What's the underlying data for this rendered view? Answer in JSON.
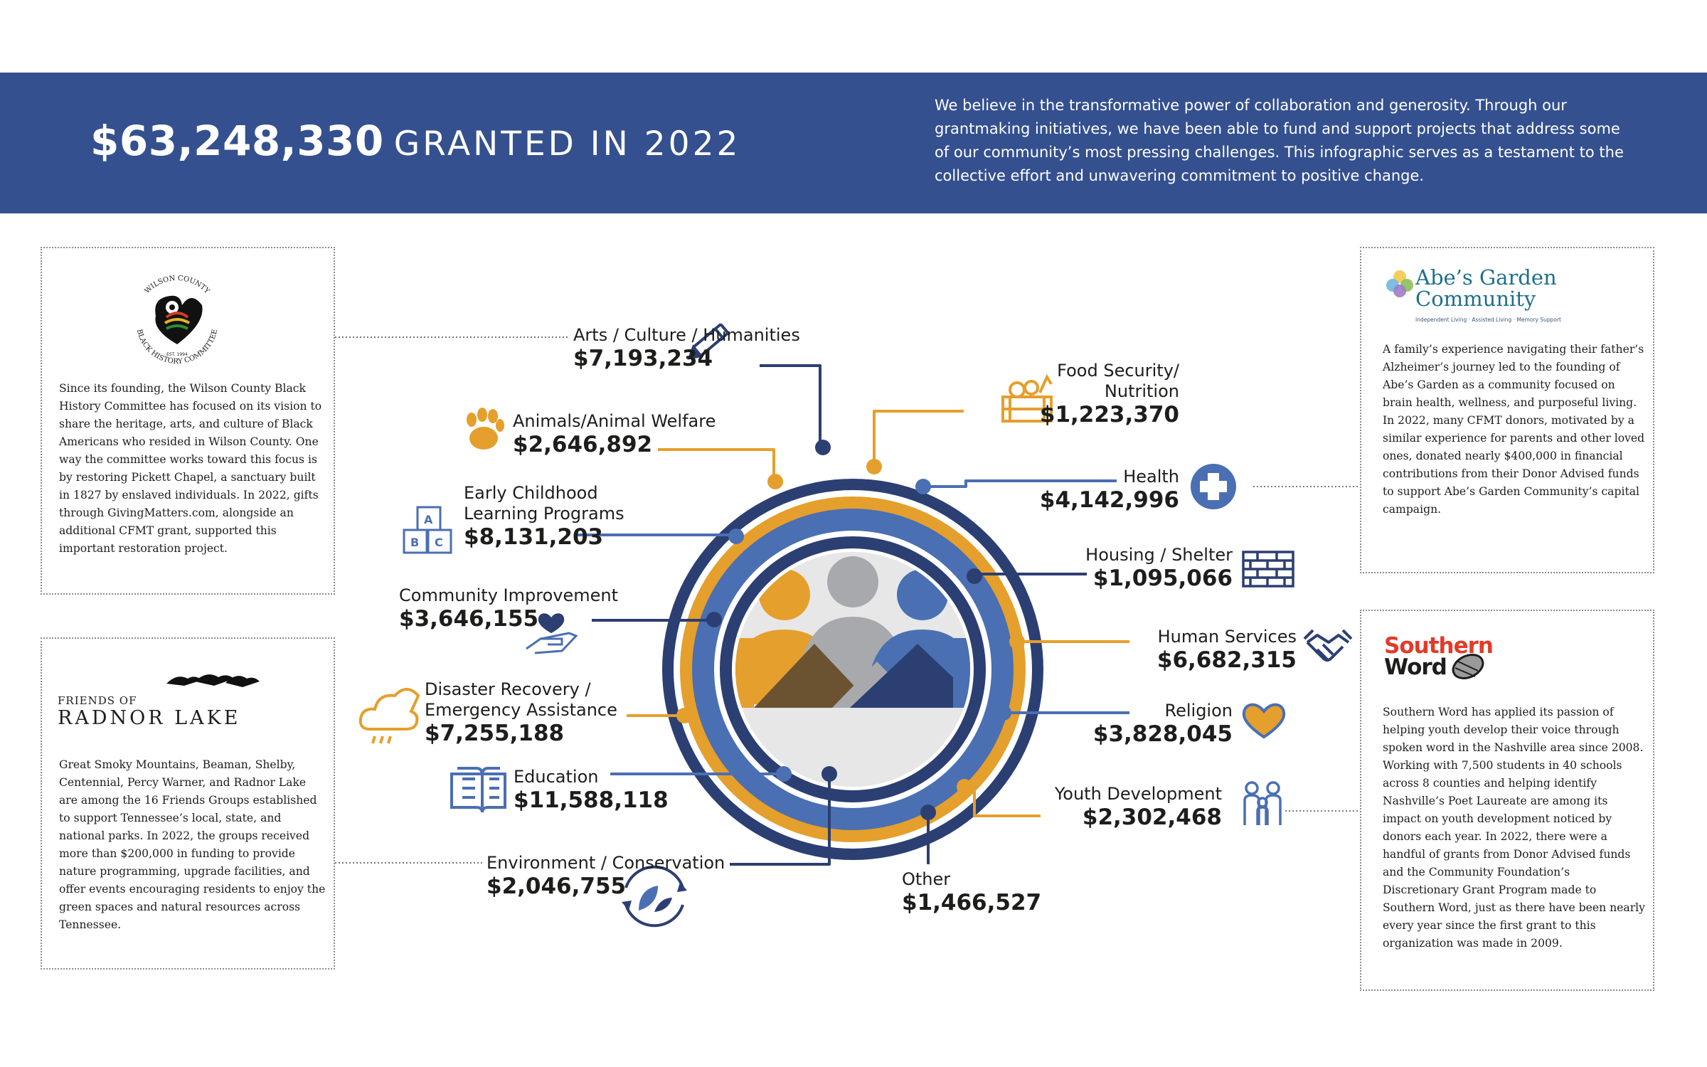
{
  "header": {
    "amount": "$63,248,330",
    "suffix": "GRANTED IN 2022",
    "intro": "We believe in the transformative power of collaboration and generosity. Through our grantmaking initiatives, we have been able to fund and support projects that address some of our community’s most pressing challenges. This infographic serves as a testament to the collective effort and unwavering commitment to positive change."
  },
  "stories": {
    "wilson": {
      "logo_top": "WILSON COUNTY",
      "logo_bottom": "BLACK HISTORY COMMITTEE",
      "logo_est": "EST. 1994",
      "text": "Since its founding, the Wilson County Black History Committee has focused on its vision to share the heritage, arts, and culture of Black Americans who resided in Wilson County. One way the committee works toward this focus is by restoring Pickett Chapel, a sanctuary built in 1827 by enslaved individuals. In 2022, gifts through GivingMatters.com, alongside an additional CFMT grant, supported this important restoration project."
    },
    "radnor": {
      "logo_line1": "FRIENDS OF",
      "logo_line2": "RADNOR LAKE",
      "text": "Great Smoky Mountains, Beaman, Shelby, Centennial, Percy Warner, and Radnor Lake are among the 16 Friends Groups established to support Tennessee’s local, state, and national parks. In 2022, the groups received more than $200,000 in funding to provide nature programming, upgrade facilities, and offer events encouraging residents to enjoy the green spaces and natural resources across Tennessee."
    },
    "abes": {
      "logo_line1": "Abe’s Garden",
      "logo_line2": "Community",
      "logo_tag": "Independent Living · Assisted Living · Memory Support",
      "text": "A family’s experience navigating their father’s Alzheimer’s journey led to the founding of Abe’s Garden as a community focused on brain health, wellness, and purposeful living. In 2022, many CFMT donors, motivated by a similar experience for parents and other loved ones, donated nearly $400,000 in financial contributions from their Donor Advised funds to support Abe’s Garden Community’s capital campaign."
    },
    "sword": {
      "logo_line1": "Southern",
      "logo_line2": "Word",
      "text": "Southern Word has applied its passion of helping youth develop their voice through spoken word in the Nashville area since 2008. Working with 7,500 students in 40 schools across 8 counties and helping identify Nashville’s Poet Laureate are among its impact on youth development noticed by donors each year. In 2022, there were a handful of grants from Donor Advised funds and the Community Foundation’s Discretionary Grant Program made to Southern Word, just as there have been nearly every year since the first grant to this organization was made in 2009."
    }
  },
  "categories": {
    "arts": {
      "label": "Arts / Culture / Humanities",
      "amount": "$7,193,234",
      "icon": "pencil-icon"
    },
    "animals": {
      "label": "Animals/Animal Welfare",
      "amount": "$2,646,892",
      "icon": "paw-icon"
    },
    "early": {
      "label1": "Early Childhood",
      "label2": "Learning Programs",
      "amount": "$8,131,203",
      "icon": "blocks-icon"
    },
    "community": {
      "label": "Community Improvement",
      "amount": "$3,646,155",
      "icon": "heart-hand-icon"
    },
    "disaster": {
      "label1": "Disaster Recovery /",
      "label2": "Emergency Assistance",
      "amount": "$7,255,188",
      "icon": "cloud-rain-icon"
    },
    "education": {
      "label": "Education",
      "amount": "$11,588,118",
      "icon": "book-icon"
    },
    "environment": {
      "label": "Environment / Conservation",
      "amount": "$2,046,755",
      "icon": "recycle-leaf-icon"
    },
    "food": {
      "label1": "Food Security/",
      "label2": "Nutrition",
      "amount": "$1,223,370",
      "icon": "food-crate-icon"
    },
    "health": {
      "label": "Health",
      "amount": "$4,142,996",
      "icon": "medical-cross-icon"
    },
    "housing": {
      "label": "Housing / Shelter",
      "amount": "$1,095,066",
      "icon": "brick-wall-icon"
    },
    "human": {
      "label": "Human Services",
      "amount": "$6,682,315",
      "icon": "handshake-icon"
    },
    "religion": {
      "label": "Religion",
      "amount": "$3,828,045",
      "icon": "heart-icon"
    },
    "youth": {
      "label": "Youth Development",
      "amount": "$2,302,468",
      "icon": "family-icon"
    },
    "other": {
      "label": "Other",
      "amount": "$1,466,527",
      "icon": ""
    }
  },
  "colors": {
    "navy": "#34508f",
    "blue": "#4a6fb3",
    "orange": "#e59f2c",
    "gray": "#a7a9ac",
    "brown": "#6b5331",
    "dark_navy": "#2c3f73"
  }
}
